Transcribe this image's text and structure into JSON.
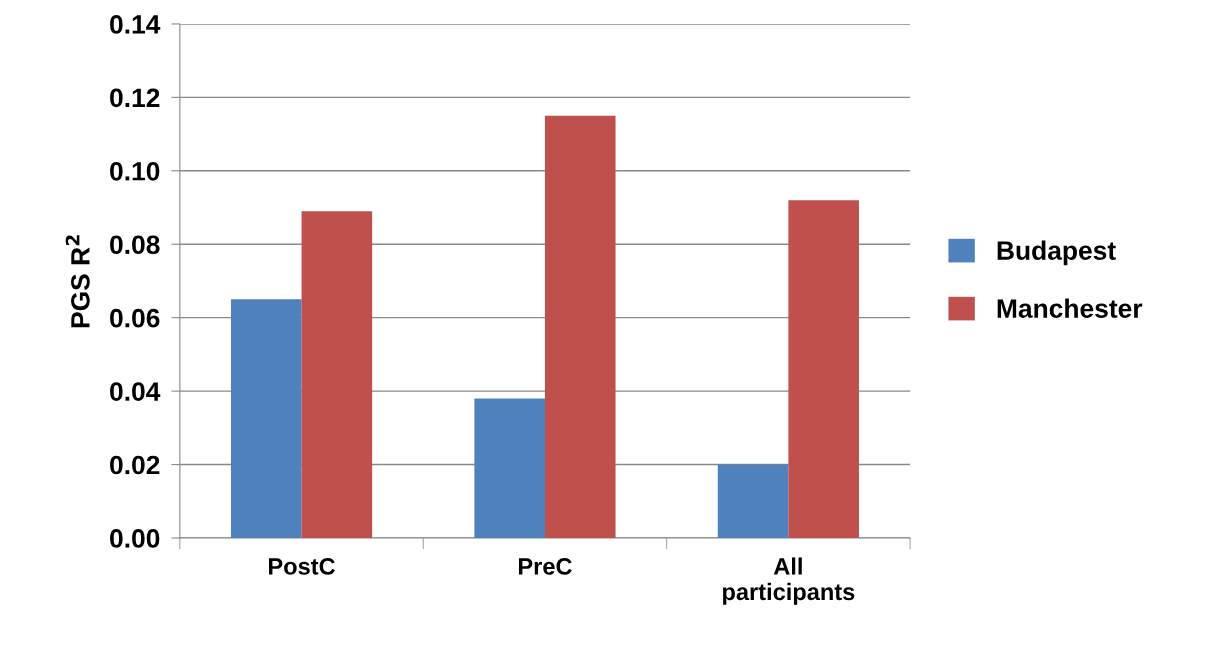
{
  "chart_data": {
    "type": "bar",
    "ylabel": "PGS R$^{2}$",
    "categories": [
      "PostC",
      "PreC",
      "All\nparticipants"
    ],
    "series": [
      {
        "name": "Budapest",
        "color": "#4f81bd",
        "values": [
          0.065,
          0.038,
          0.02
        ]
      },
      {
        "name": "Manchester",
        "color": "#c0504d",
        "values": [
          0.089,
          0.115,
          0.092
        ]
      }
    ],
    "ylim": [
      0,
      0.14
    ],
    "yticks": [
      {
        "value": 0,
        "label": "0.00"
      },
      {
        "value": 0.02,
        "label": "0.02"
      },
      {
        "value": 0.04,
        "label": "0.04"
      },
      {
        "value": 0.06,
        "label": "0.06"
      },
      {
        "value": 0.08,
        "label": "0.08"
      },
      {
        "value": 0.1,
        "label": "0.10"
      },
      {
        "value": 0.12,
        "label": "0.12"
      },
      {
        "value": 0.14,
        "label": "0.14"
      }
    ],
    "grid": "y",
    "legend": "right"
  }
}
